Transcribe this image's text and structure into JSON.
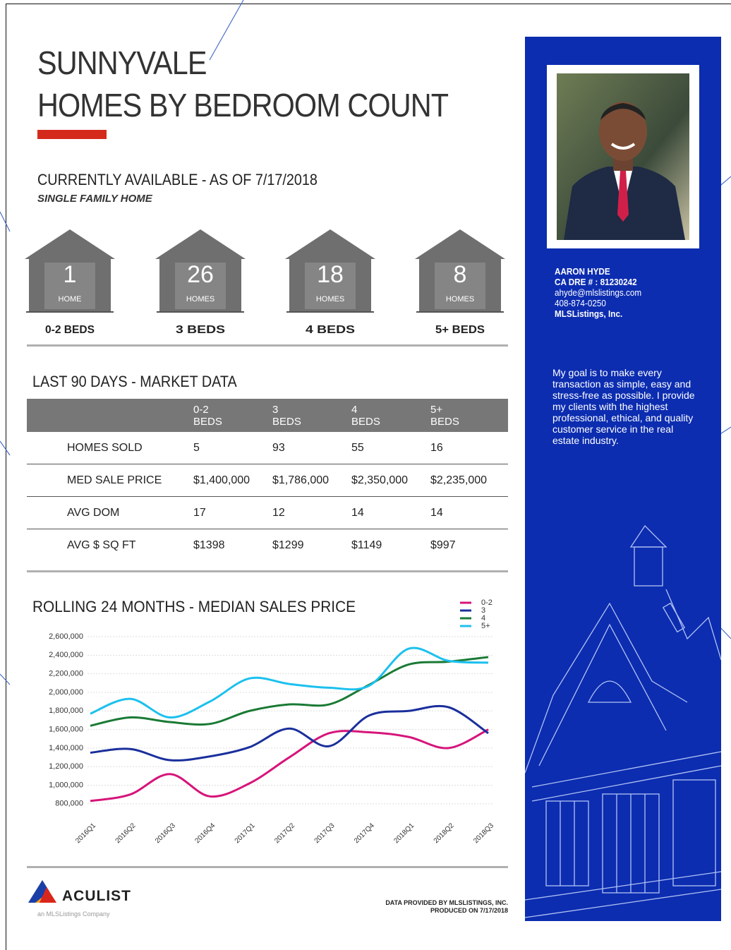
{
  "header": {
    "title_line1": "SUNNYVALE",
    "title_line2": "HOMES BY BEDROOM COUNT"
  },
  "available": {
    "heading": "CURRENTLY AVAILABLE - AS OF 7/17/2018",
    "subheading": "SINGLE FAMILY HOME",
    "houses": [
      {
        "count": 1,
        "unit": "HOME",
        "label": "0-2 BEDS"
      },
      {
        "count": 26,
        "unit": "HOMES",
        "label": "3 BEDS"
      },
      {
        "count": 18,
        "unit": "HOMES",
        "label": "4 BEDS"
      },
      {
        "count": 8,
        "unit": "HOMES",
        "label": "5+ BEDS"
      }
    ]
  },
  "market": {
    "heading": "LAST 90 DAYS - MARKET DATA",
    "columns": [
      "0-2 BEDS",
      "3 BEDS",
      "4 BEDS",
      "5+ BEDS"
    ],
    "rows": [
      [
        "HOMES SOLD",
        "5",
        "93",
        "55",
        "16"
      ],
      [
        "MED SALE PRICE",
        "$1,400,000",
        "$1,786,000",
        "$2,350,000",
        "$2,235,000"
      ],
      [
        "AVG DOM",
        "17",
        "12",
        "14",
        "14"
      ],
      [
        "AVG $ SQ FT",
        "$1398",
        "$1299",
        "$1149",
        "$997"
      ]
    ]
  },
  "chart_data": {
    "type": "line",
    "title": "ROLLING 24 MONTHS - MEDIAN SALES PRICE",
    "categories": [
      "2016Q1",
      "2016Q2",
      "2016Q3",
      "2016Q4",
      "2017Q1",
      "2017Q2",
      "2017Q3",
      "2017Q4",
      "2018Q1",
      "2018Q2",
      "2018Q3"
    ],
    "series": [
      {
        "name": "0-2",
        "color": "#d6157a",
        "values": [
          830000,
          900000,
          1120000,
          880000,
          1020000,
          1300000,
          1560000,
          1570000,
          1520000,
          1400000,
          1600000
        ]
      },
      {
        "name": "3",
        "color": "#1a2f9c",
        "values": [
          1350000,
          1390000,
          1270000,
          1310000,
          1410000,
          1610000,
          1420000,
          1750000,
          1800000,
          1840000,
          1560000
        ]
      },
      {
        "name": "4",
        "color": "#1a7a35",
        "values": [
          1640000,
          1730000,
          1680000,
          1660000,
          1800000,
          1870000,
          1870000,
          2080000,
          2300000,
          2330000,
          2380000
        ]
      },
      {
        "name": "5+",
        "color": "#1cc0ee",
        "values": [
          1770000,
          1930000,
          1730000,
          1900000,
          2150000,
          2090000,
          2050000,
          2070000,
          2470000,
          2340000,
          2320000
        ]
      }
    ],
    "ylim": [
      700000,
      2600000
    ],
    "yticks": [
      {
        "value": 800000,
        "label": "800,000"
      },
      {
        "value": 1000000,
        "label": "1,000,000"
      },
      {
        "value": 1200000,
        "label": "1,200,000"
      },
      {
        "value": 1400000,
        "label": "1,400,000"
      },
      {
        "value": 1600000,
        "label": "1,600,000"
      },
      {
        "value": 1800000,
        "label": "1,800,000"
      },
      {
        "value": 2000000,
        "label": "2,000,000"
      },
      {
        "value": 2200000,
        "label": "2,200,000"
      },
      {
        "value": 2400000,
        "label": "2,400,000"
      },
      {
        "value": 2600000,
        "label": "2,600,000"
      }
    ],
    "grid": true,
    "legend": "top-right"
  },
  "agent": {
    "name": "AARON HYDE",
    "dre": "CA DRE # : 81230242",
    "email": "ahyde@mlslistings.com",
    "phone": "408-874-0250",
    "company": "MLSListings, Inc.",
    "bio": "My goal is to make every transaction as  simple, easy and stress-free as possible. I provide my clients with the highest professional, ethical, and quality customer service in the real estate industry."
  },
  "footer": {
    "brand": "ACULIST",
    "tagline": "an MLSListings Company",
    "note_line1": "DATA PROVIDED BY MLSLISTINGS, INC.",
    "note_line2": "PRODUCED ON 7/17/2018"
  }
}
